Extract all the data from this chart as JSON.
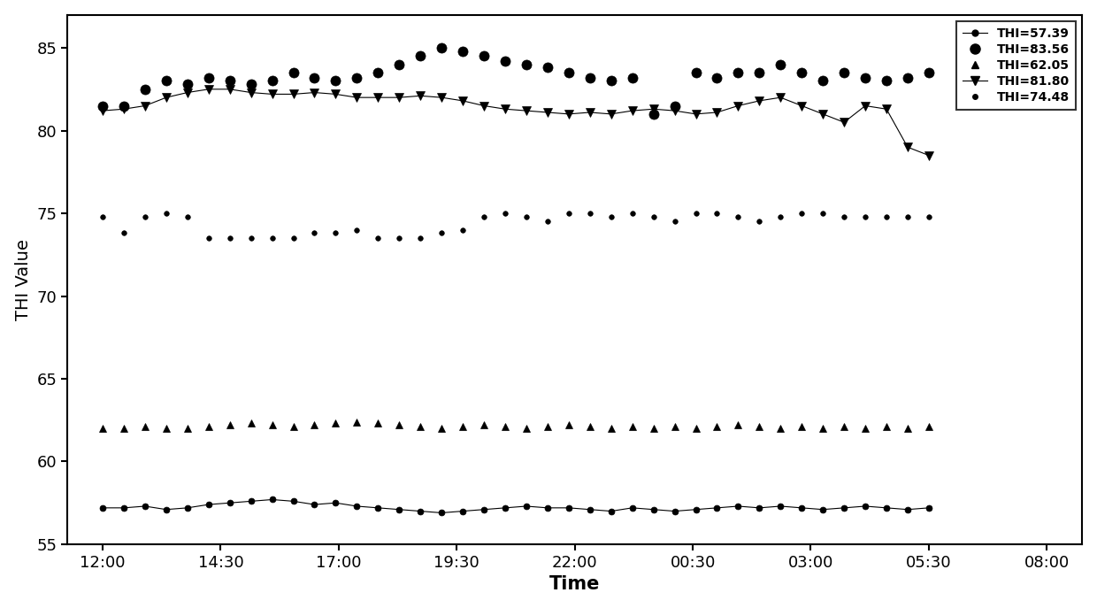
{
  "title": "",
  "xlabel": "Time",
  "ylabel": "THI Value",
  "ylim": [
    55,
    87
  ],
  "yticks": [
    55,
    60,
    65,
    70,
    75,
    80,
    85
  ],
  "xtick_labels": [
    "12:00",
    "14:30",
    "17:00",
    "19:30",
    "22:00",
    "00:30",
    "03:00",
    "05:30",
    "08:00"
  ],
  "series": [
    {
      "label": "THI=57.39",
      "color": "black",
      "marker": "o",
      "markersize": 5,
      "linewidth": 1.0,
      "linestyle": "-",
      "values": [
        57.2,
        57.2,
        57.3,
        57.1,
        57.2,
        57.4,
        57.5,
        57.6,
        57.7,
        57.6,
        57.4,
        57.5,
        57.3,
        57.2,
        57.1,
        57.0,
        56.9,
        57.0,
        57.1,
        57.2,
        57.3,
        57.2,
        57.2,
        57.1,
        57.0,
        57.2,
        57.1,
        57.0,
        57.1,
        57.2,
        57.3,
        57.2,
        57.3,
        57.2,
        57.1,
        57.2,
        57.3,
        57.2,
        57.1,
        57.2
      ]
    },
    {
      "label": "THI=83.56",
      "color": "black",
      "marker": "o",
      "markersize": 7,
      "linewidth": 0,
      "linestyle": "none",
      "values": [
        81.5,
        81.5,
        82.5,
        83.0,
        82.8,
        83.2,
        83.0,
        82.8,
        83.0,
        83.5,
        83.2,
        83.0,
        83.2,
        83.5,
        84.0,
        84.5,
        85.0,
        84.8,
        84.5,
        84.2,
        84.0,
        83.8,
        83.5,
        83.2,
        83.0,
        83.2,
        81.0,
        81.5,
        83.5,
        83.2,
        83.5,
        83.5,
        84.0,
        83.5,
        83.0,
        83.5,
        83.2,
        83.0,
        83.2,
        83.5
      ]
    },
    {
      "label": "THI=62.05",
      "color": "black",
      "marker": "^",
      "markersize": 6,
      "linewidth": 0,
      "linestyle": "none",
      "values": [
        62.0,
        62.0,
        62.1,
        62.0,
        62.0,
        62.1,
        62.2,
        62.3,
        62.2,
        62.1,
        62.2,
        62.3,
        62.4,
        62.3,
        62.2,
        62.1,
        62.0,
        62.1,
        62.2,
        62.1,
        62.0,
        62.1,
        62.2,
        62.1,
        62.0,
        62.1,
        62.0,
        62.1,
        62.0,
        62.1,
        62.2,
        62.1,
        62.0,
        62.1,
        62.0,
        62.1,
        62.0,
        62.1,
        62.0,
        62.1
      ]
    },
    {
      "label": "THI=81.80",
      "color": "black",
      "marker": "v",
      "markersize": 7,
      "linewidth": 1.0,
      "linestyle": "-",
      "values": [
        81.2,
        81.3,
        81.5,
        82.0,
        82.3,
        82.5,
        82.5,
        82.3,
        82.2,
        82.2,
        82.3,
        82.2,
        82.0,
        82.0,
        82.0,
        82.1,
        82.0,
        81.8,
        81.5,
        81.3,
        81.2,
        81.1,
        81.0,
        81.1,
        81.0,
        81.2,
        81.3,
        81.2,
        81.0,
        81.1,
        81.5,
        81.8,
        82.0,
        81.5,
        81.0,
        80.5,
        81.5,
        81.3,
        79.0,
        78.5
      ]
    },
    {
      "label": "THI=74.48",
      "color": "black",
      "marker": "o",
      "markersize": 5,
      "linewidth": 0,
      "linestyle": "none",
      "values": [
        74.8,
        73.8,
        74.8,
        75.0,
        74.8,
        73.5,
        73.5,
        73.5,
        73.5,
        73.5,
        73.8,
        73.8,
        74.0,
        73.5,
        73.5,
        73.5,
        73.8,
        74.0,
        74.8,
        75.0,
        74.8,
        74.5,
        75.0,
        75.0,
        74.8,
        75.0,
        74.8,
        74.5,
        75.0,
        75.0,
        74.8,
        74.5,
        74.8,
        75.0,
        75.0,
        74.8,
        74.8,
        74.8,
        74.8,
        74.8
      ]
    }
  ],
  "background_color": "#ffffff",
  "legend_fontsize": 10,
  "axis_label_fontsize": 14,
  "tick_fontsize": 13
}
